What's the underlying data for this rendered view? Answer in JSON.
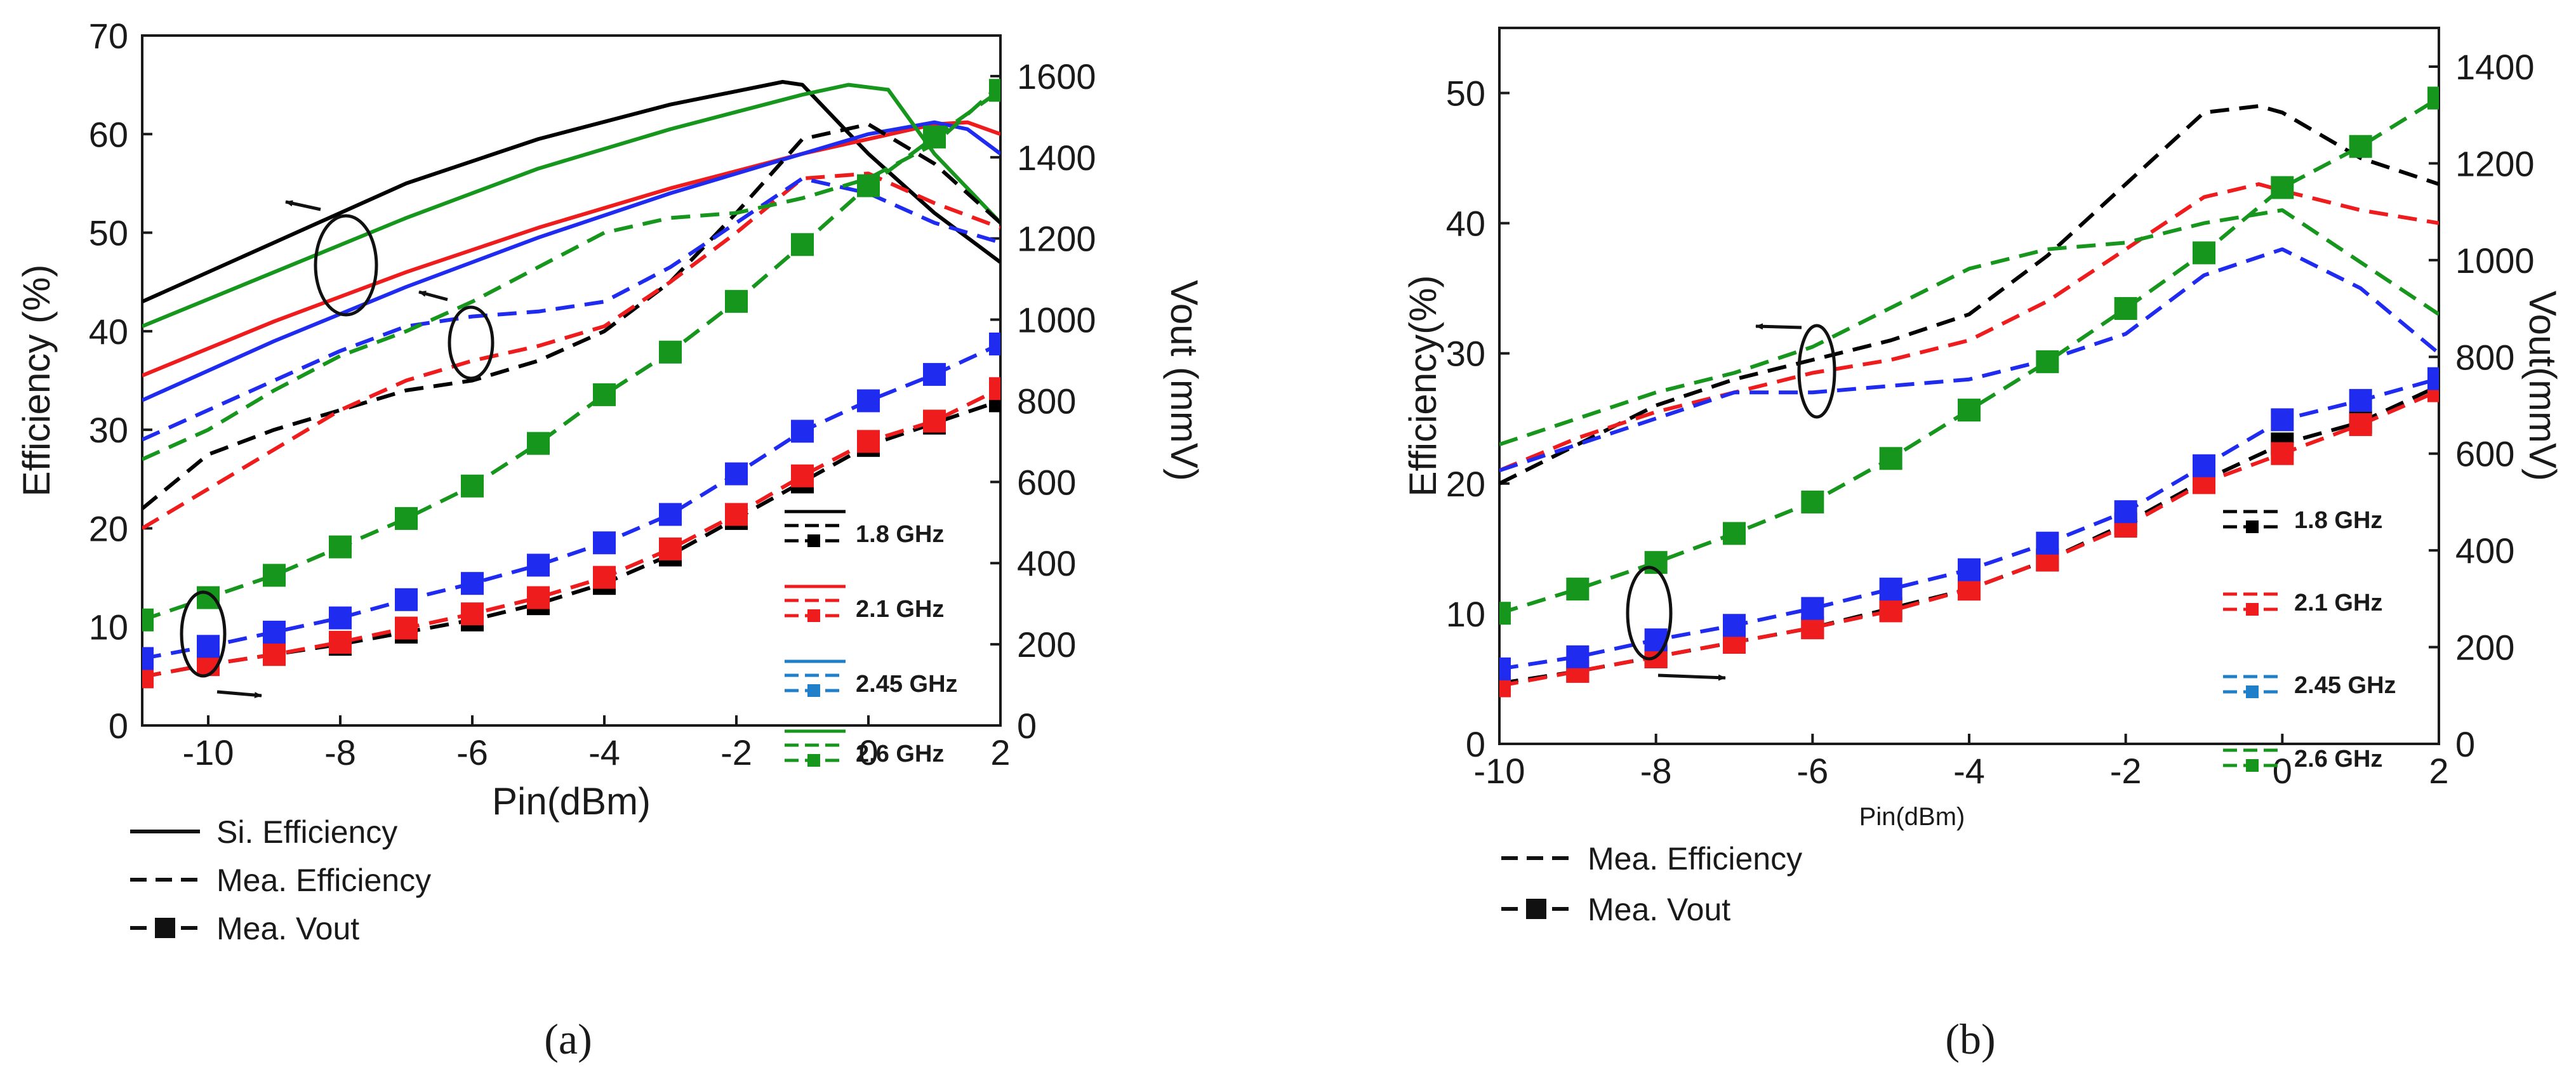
{
  "colors": {
    "1.8 GHz": "#000000",
    "2.1 GHz": "#ee1c1c",
    "2.45 GHz": "#1f2bef",
    "2.6 GHz": "#16961c",
    "legend_2.45": "#1f7fc8",
    "axis": "#1a1a1a"
  },
  "chart_data": [
    {
      "type": "line",
      "panel": "a",
      "panel_label": "(a)",
      "xlabel": "Pin(dBm)",
      "ylabel_left": "Efficiency (%)",
      "ylabel_right": "Vout (mmV)",
      "xlim": [
        -11,
        2
      ],
      "ylim_left": [
        0,
        70
      ],
      "ylim_right": [
        0,
        1700
      ],
      "xticks": [
        -10,
        -8,
        -6,
        -4,
        -2,
        0,
        2
      ],
      "yticks_left": [
        0,
        10,
        20,
        30,
        40,
        50,
        60,
        70
      ],
      "yticks_right": [
        0,
        200,
        400,
        600,
        800,
        1000,
        1200,
        1400,
        1600
      ],
      "freq_legend": [
        "1.8 GHz",
        "2.1 GHz",
        "2.45 GHz",
        "2.6 GHz"
      ],
      "style_legend": [
        "Si. Efficiency",
        "Mea. Efficiency",
        "Mea. Vout"
      ],
      "series": [
        {
          "name": "1.8 GHz",
          "kind": "sim_eff",
          "x": [
            -11,
            -9,
            -7,
            -5,
            -3,
            -1.3,
            -1,
            0,
            1,
            2
          ],
          "values": [
            43,
            49,
            55,
            59.5,
            63,
            65.3,
            65,
            58,
            52,
            47
          ]
        },
        {
          "name": "2.1 GHz",
          "kind": "sim_eff",
          "x": [
            -11,
            -9,
            -7,
            -5,
            -3,
            -1,
            0,
            1,
            1.5,
            2
          ],
          "values": [
            35.5,
            41,
            46,
            50.5,
            54.5,
            58,
            59.5,
            61,
            61.2,
            60
          ]
        },
        {
          "name": "2.45 GHz",
          "kind": "sim_eff",
          "x": [
            -11,
            -9,
            -7,
            -5,
            -3,
            -1,
            0,
            1,
            1.5,
            2
          ],
          "values": [
            33,
            39,
            44.5,
            49.5,
            54,
            58,
            60,
            61.2,
            60.5,
            58
          ]
        },
        {
          "name": "2.6 GHz",
          "kind": "sim_eff",
          "x": [
            -11,
            -9,
            -7,
            -5,
            -3,
            -1,
            -0.3,
            0.3,
            1,
            2
          ],
          "values": [
            40.5,
            46,
            51.5,
            56.5,
            60.5,
            64,
            65,
            64.5,
            58,
            51
          ]
        },
        {
          "name": "1.8 GHz",
          "kind": "mea_eff",
          "x": [
            -11,
            -10,
            -9,
            -8,
            -7,
            -6,
            -5,
            -4,
            -3,
            -2,
            -1,
            0,
            1,
            2
          ],
          "values": [
            22,
            27.5,
            30,
            32,
            34,
            35,
            37,
            40,
            45,
            52,
            59.5,
            61,
            57,
            51
          ]
        },
        {
          "name": "2.1 GHz",
          "kind": "mea_eff",
          "x": [
            -11,
            -10,
            -9,
            -8,
            -7,
            -6,
            -5,
            -4,
            -3,
            -2,
            -1,
            0,
            1,
            2
          ],
          "values": [
            20,
            24,
            28,
            32,
            35,
            37,
            38.5,
            40.5,
            45,
            50,
            55.5,
            56,
            53,
            50.5
          ]
        },
        {
          "name": "2.45 GHz",
          "kind": "mea_eff",
          "x": [
            -11,
            -10,
            -9,
            -8,
            -7,
            -6,
            -5,
            -4,
            -3,
            -2,
            -1,
            0,
            1,
            2
          ],
          "values": [
            29,
            32,
            35,
            38,
            40.5,
            41.5,
            42,
            43,
            46.5,
            51,
            55.5,
            54,
            51,
            49
          ]
        },
        {
          "name": "2.6 GHz",
          "kind": "mea_eff",
          "x": [
            -11,
            -10,
            -9,
            -8,
            -7,
            -6,
            -5,
            -4,
            -3,
            -2,
            -1,
            0,
            1,
            2
          ],
          "values": [
            27,
            30,
            34,
            37.5,
            40,
            43,
            46.5,
            50,
            51.5,
            52,
            53.5,
            55.5,
            59,
            65
          ]
        },
        {
          "name": "1.8 GHz",
          "kind": "mea_vout",
          "x": [
            -11,
            -10,
            -9,
            -8,
            -7,
            -6,
            -5,
            -4,
            -3,
            -2,
            -1,
            0,
            1,
            2
          ],
          "values": [
            120,
            150,
            175,
            200,
            230,
            260,
            300,
            350,
            420,
            510,
            600,
            690,
            745,
            800
          ]
        },
        {
          "name": "2.1 GHz",
          "kind": "mea_vout",
          "x": [
            -11,
            -10,
            -9,
            -8,
            -7,
            -6,
            -5,
            -4,
            -3,
            -2,
            -1,
            0,
            1,
            2
          ],
          "values": [
            120,
            150,
            175,
            205,
            240,
            275,
            315,
            365,
            435,
            520,
            615,
            700,
            750,
            830
          ]
        },
        {
          "name": "2.45 GHz",
          "kind": "mea_vout",
          "x": [
            -11,
            -10,
            -9,
            -8,
            -7,
            -6,
            -5,
            -4,
            -3,
            -2,
            -1,
            0,
            1,
            2
          ],
          "values": [
            165,
            195,
            230,
            265,
            310,
            350,
            395,
            450,
            520,
            620,
            725,
            800,
            865,
            940
          ]
        },
        {
          "name": "2.6 GHz",
          "kind": "mea_vout",
          "x": [
            -11,
            -10,
            -9,
            -8,
            -7,
            -6,
            -5,
            -4,
            -3,
            -2,
            -1,
            0,
            1,
            2
          ],
          "values": [
            260,
            315,
            370,
            440,
            510,
            590,
            695,
            815,
            920,
            1045,
            1185,
            1330,
            1450,
            1565
          ]
        }
      ]
    },
    {
      "type": "line",
      "panel": "b",
      "panel_label": "(b)",
      "xlabel": "Pin(dBm)",
      "ylabel_left": "Efficiency(%)",
      "ylabel_right": "Vout(mmV)",
      "xlim": [
        -10,
        2
      ],
      "ylim_left": [
        0,
        55
      ],
      "ylim_right": [
        0,
        1480
      ],
      "xticks": [
        -10,
        -8,
        -6,
        -4,
        -2,
        0,
        2
      ],
      "yticks_left": [
        0,
        10,
        20,
        30,
        40,
        50
      ],
      "yticks_right": [
        0,
        200,
        400,
        600,
        800,
        1000,
        1200,
        1400
      ],
      "freq_legend": [
        "1.8 GHz",
        "2.1 GHz",
        "2.45 GHz",
        "2.6 GHz"
      ],
      "style_legend": [
        "Mea. Efficiency",
        "Mea. Vout"
      ],
      "series": [
        {
          "name": "1.8 GHz",
          "kind": "mea_eff",
          "x": [
            -10,
            -9,
            -8,
            -7,
            -6,
            -5,
            -4,
            -3,
            -2,
            -1,
            -0.3,
            0,
            1,
            2
          ],
          "values": [
            20,
            23,
            26,
            28,
            29.5,
            31,
            33,
            37.5,
            43,
            48.5,
            49,
            48.5,
            45,
            43
          ]
        },
        {
          "name": "2.1 GHz",
          "kind": "mea_eff",
          "x": [
            -10,
            -9,
            -8,
            -7,
            -6,
            -5,
            -4,
            -3,
            -2,
            -1,
            -0.3,
            0,
            1,
            2
          ],
          "values": [
            21,
            23.5,
            25.5,
            27,
            28.5,
            29.5,
            31,
            34,
            38,
            42,
            43,
            42.5,
            41,
            40
          ]
        },
        {
          "name": "2.45 GHz",
          "kind": "mea_eff",
          "x": [
            -10,
            -9,
            -8,
            -7,
            -6,
            -5,
            -4,
            -3,
            -2,
            -1,
            0,
            1,
            2
          ],
          "values": [
            21,
            23,
            25,
            27,
            27,
            27.5,
            28,
            29.5,
            31.5,
            36,
            38,
            35,
            30
          ]
        },
        {
          "name": "2.6 GHz",
          "kind": "mea_eff",
          "x": [
            -10,
            -9,
            -8,
            -7,
            -6,
            -5,
            -4,
            -3,
            -2,
            -1,
            0,
            1,
            2
          ],
          "values": [
            23,
            25,
            27,
            28.5,
            30.5,
            33.5,
            36.5,
            38,
            38.5,
            40,
            41,
            37,
            33
          ]
        },
        {
          "name": "1.8 GHz",
          "kind": "mea_vout",
          "x": [
            -10,
            -9,
            -8,
            -7,
            -6,
            -5,
            -4,
            -3,
            -2,
            -1,
            0,
            1,
            2
          ],
          "values": [
            125,
            150,
            180,
            210,
            240,
            280,
            320,
            380,
            455,
            545,
            620,
            665,
            740
          ]
        },
        {
          "name": "2.1 GHz",
          "kind": "mea_vout",
          "x": [
            -10,
            -9,
            -8,
            -7,
            -6,
            -5,
            -4,
            -3,
            -2,
            -1,
            0,
            1,
            2
          ],
          "values": [
            120,
            150,
            180,
            210,
            240,
            275,
            320,
            380,
            450,
            540,
            600,
            660,
            730
          ]
        },
        {
          "name": "2.45 GHz",
          "kind": "mea_vout",
          "x": [
            -10,
            -9,
            -8,
            -7,
            -6,
            -5,
            -4,
            -3,
            -2,
            -1,
            0,
            1,
            2
          ],
          "values": [
            155,
            180,
            215,
            245,
            280,
            320,
            360,
            415,
            480,
            575,
            670,
            710,
            755
          ]
        },
        {
          "name": "2.6 GHz",
          "kind": "mea_vout",
          "x": [
            -10,
            -9,
            -8,
            -7,
            -6,
            -5,
            -4,
            -3,
            -2,
            -1,
            0,
            1,
            2
          ],
          "values": [
            270,
            320,
            375,
            435,
            500,
            590,
            690,
            790,
            900,
            1015,
            1150,
            1235,
            1335
          ]
        }
      ]
    }
  ]
}
